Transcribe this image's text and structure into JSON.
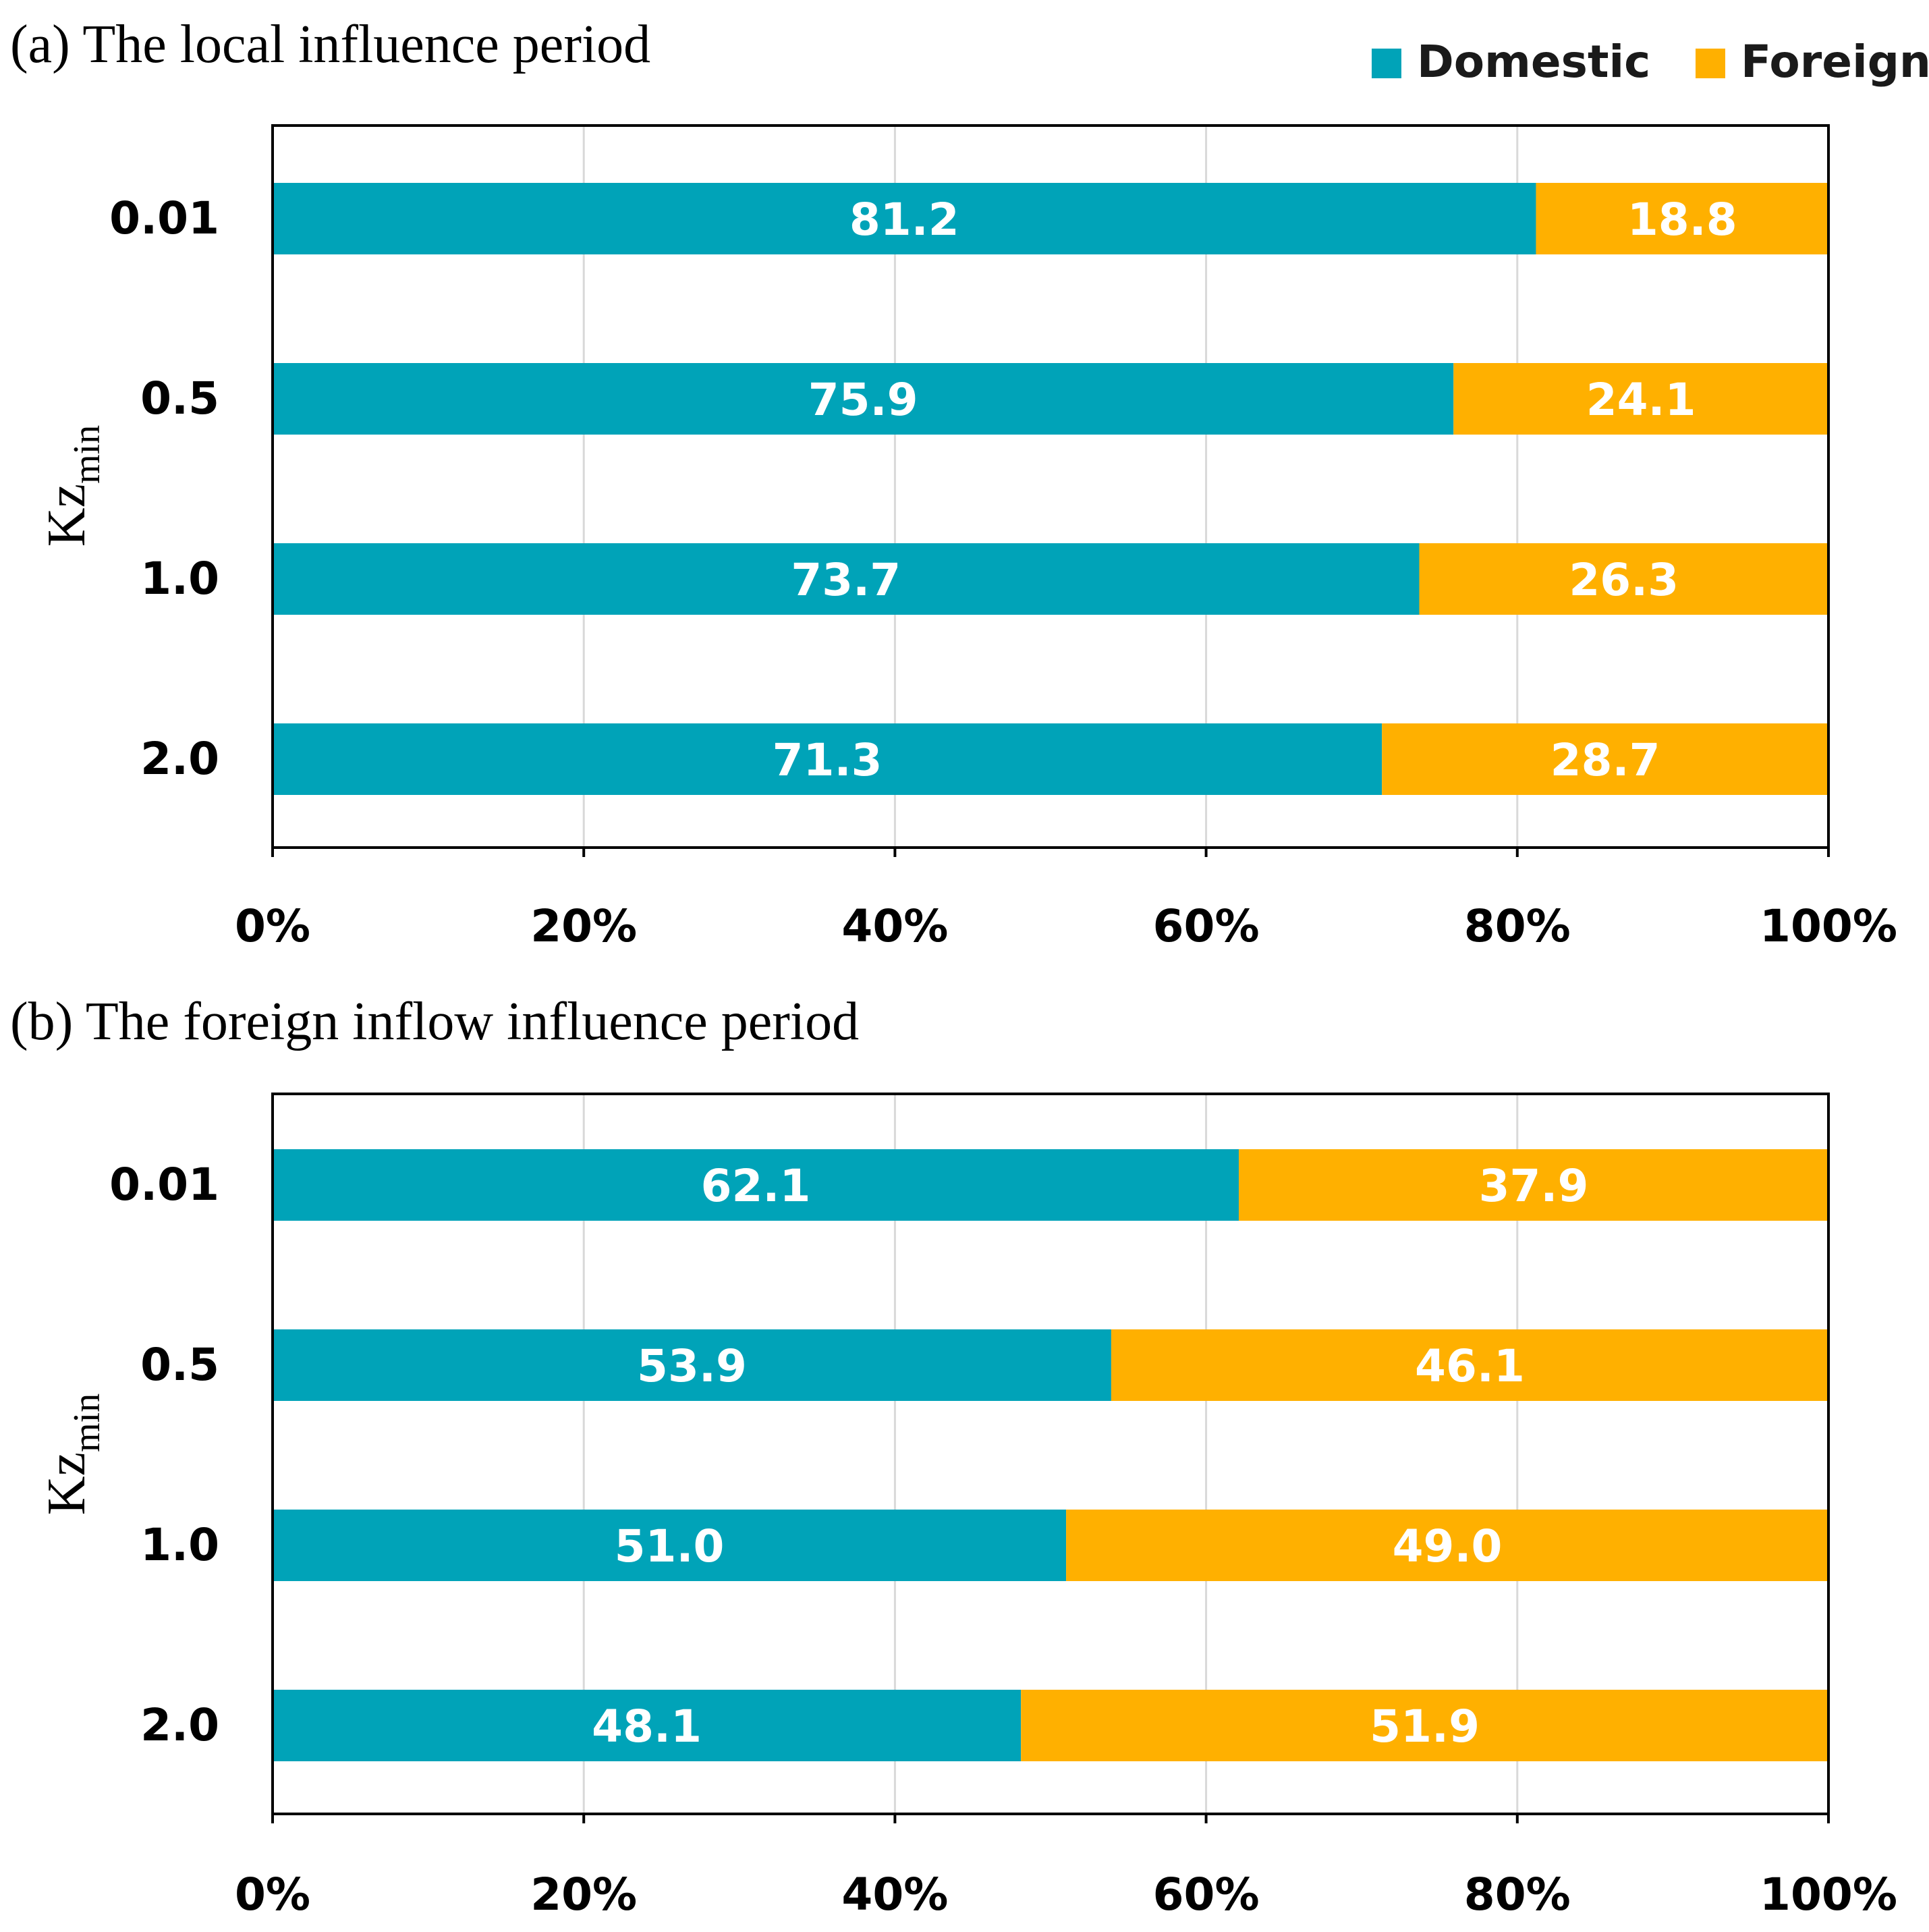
{
  "legend": {
    "position": "top-right",
    "items": [
      {
        "label": "Domestic",
        "color": "#00A3B8"
      },
      {
        "label": "Foreign",
        "color": "#FFB000"
      }
    ]
  },
  "chart_data": [
    {
      "type": "bar",
      "orientation": "horizontal",
      "stacked": "percent",
      "title": "(a) The local influence period",
      "ylabel_main": "Kz",
      "ylabel_sub": "min",
      "xlabel": "",
      "xlim": [
        0,
        100
      ],
      "x_ticks": [
        "0%",
        "20%",
        "40%",
        "60%",
        "80%",
        "100%"
      ],
      "grid": true,
      "categories": [
        "0.01",
        "0.5",
        "1.0",
        "2.0"
      ],
      "series": [
        {
          "name": "Domestic",
          "color": "#00A3B8",
          "values": [
            81.2,
            75.9,
            73.7,
            71.3
          ],
          "labels": [
            "81.2",
            "75.9",
            "73.7",
            "71.3"
          ]
        },
        {
          "name": "Foreign",
          "color": "#FFB000",
          "values": [
            18.8,
            24.1,
            26.3,
            28.7
          ],
          "labels": [
            "18.8",
            "24.1",
            "26.3",
            "28.7"
          ]
        }
      ]
    },
    {
      "type": "bar",
      "orientation": "horizontal",
      "stacked": "percent",
      "title": "(b) The foreign inflow influence period",
      "ylabel_main": "Kz",
      "ylabel_sub": "min",
      "xlabel": "",
      "xlim": [
        0,
        100
      ],
      "x_ticks": [
        "0%",
        "20%",
        "40%",
        "60%",
        "80%",
        "100%"
      ],
      "grid": true,
      "categories": [
        "0.01",
        "0.5",
        "1.0",
        "2.0"
      ],
      "series": [
        {
          "name": "Domestic",
          "color": "#00A3B8",
          "values": [
            62.1,
            53.9,
            51.0,
            48.1
          ],
          "labels": [
            "62.1",
            "53.9",
            "51.0",
            "48.1"
          ]
        },
        {
          "name": "Foreign",
          "color": "#FFB000",
          "values": [
            37.9,
            46.1,
            49.0,
            51.9
          ],
          "labels": [
            "37.9",
            "46.1",
            "49.0",
            "51.9"
          ]
        }
      ]
    }
  ]
}
